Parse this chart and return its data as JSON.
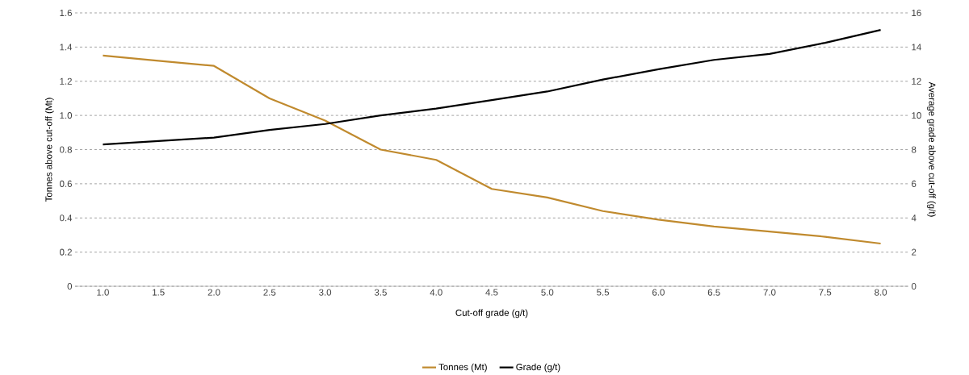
{
  "chart_data": {
    "type": "line",
    "xlabel": "Cut-off grade (g/t)",
    "ylabel": "Tonnes above cut-off (Mt)",
    "y2label": "Average grade above cut-off (g/t)",
    "categories": [
      "1.0",
      "1.5",
      "2.0",
      "2.5",
      "3.0",
      "3.5",
      "4.0",
      "4.5",
      "5.0",
      "5.5",
      "6.0",
      "6.5",
      "7.0",
      "7.5",
      "8.0"
    ],
    "series": [
      {
        "name": "Tonnes (Mt)",
        "color": "#c08a2e",
        "values": [
          1.35,
          1.32,
          1.29,
          1.1,
          0.97,
          0.8,
          0.74,
          0.57,
          0.52,
          0.44,
          0.39,
          0.35,
          0.32,
          0.29,
          0.25
        ]
      },
      {
        "name": "Grade (g/t)",
        "color": "#000000",
        "axis": "y2",
        "values": [
          8.3,
          8.5,
          8.7,
          9.15,
          9.5,
          10.0,
          10.4,
          10.9,
          11.4,
          12.1,
          12.7,
          13.25,
          13.6,
          14.25,
          15.0
        ]
      }
    ],
    "ylim": [
      0,
      1.6
    ],
    "yticks": [
      0,
      0.2,
      0.4,
      0.6,
      0.8,
      {
        "value": 1.0,
        "label": "1.0"
      },
      1.2,
      1.4,
      1.6
    ],
    "y2lim": [
      0,
      16
    ],
    "y2ticks": [
      0,
      2,
      4,
      6,
      8,
      10,
      12,
      14,
      16
    ],
    "grid": "y",
    "legend": "bottom",
    "marker": "none",
    "line_style": "solid"
  }
}
